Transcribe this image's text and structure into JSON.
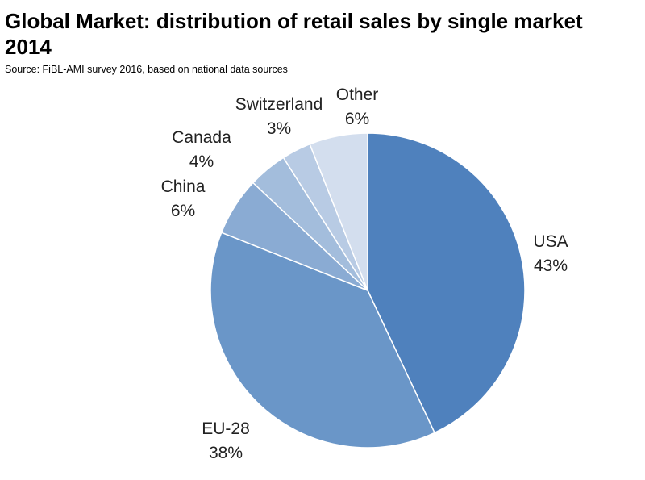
{
  "chart_data": {
    "type": "pie",
    "title_line1": "Global Market: distribution of retail sales by single market",
    "title_line2": "2014",
    "subtitle": "Source: FiBL-AMI survey 2016, based on national data sources",
    "start": "12 o'clock",
    "direction": "clockwise",
    "legend": "none",
    "slices": [
      {
        "name": "USA",
        "label": "43%",
        "value": 43,
        "color": "#4f81bd"
      },
      {
        "name": "EU-28",
        "label": "38%",
        "value": 38,
        "color": "#6a96c8"
      },
      {
        "name": "China",
        "label": "6%",
        "value": 6,
        "color": "#8aabd3"
      },
      {
        "name": "Canada",
        "label": "4%",
        "value": 4,
        "color": "#a3bddc"
      },
      {
        "name": "Switzerland",
        "label": "3%",
        "value": 3,
        "color": "#b8cbe4"
      },
      {
        "name": "Other",
        "label": "6%",
        "value": 6,
        "color": "#d3deee"
      }
    ]
  }
}
